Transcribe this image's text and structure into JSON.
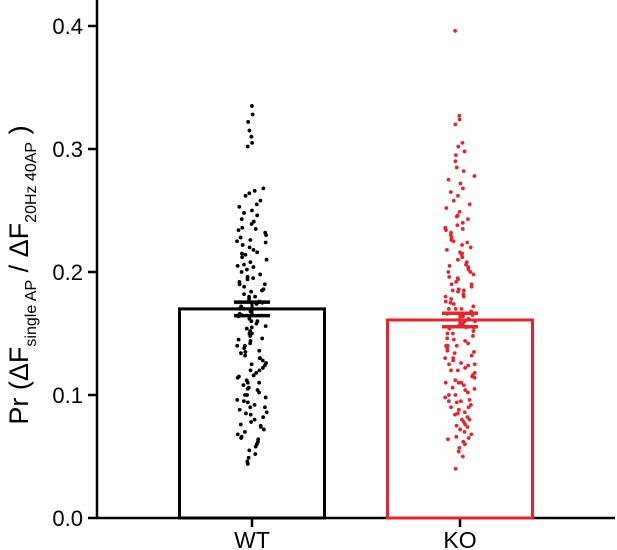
{
  "chart_data": {
    "type": "bar",
    "categories": [
      "WT",
      "KO"
    ],
    "colors": [
      "#000000",
      "#e8242b"
    ],
    "ylim": [
      0,
      0.42
    ],
    "yticks": [
      "0.0",
      "0.1",
      "0.2",
      "0.3",
      "0.4"
    ],
    "ylabel": {
      "prefix": "Pr (ΔF",
      "sub1": "single AP",
      "mid": " / ΔF",
      "sub2": "20Hz 40AP",
      "suffix": " )"
    },
    "series": [
      {
        "values": [
          0.17,
          0.161
        ],
        "sem": [
          0.0055,
          0.0055
        ],
        "points": [
          [
            0.335,
            0.328,
            0.322,
            0.315,
            0.31,
            0.305,
            0.302,
            0.268,
            0.266,
            0.264,
            0.262,
            0.258,
            0.255,
            0.253,
            0.25,
            0.248,
            0.246,
            0.243,
            0.241,
            0.239,
            0.236,
            0.234,
            0.232,
            0.23,
            0.228,
            0.226,
            0.224,
            0.222,
            0.22,
            0.218,
            0.216,
            0.214,
            0.212,
            0.21,
            0.208,
            0.206,
            0.204,
            0.202,
            0.2,
            0.198,
            0.196,
            0.194,
            0.192,
            0.19,
            0.188,
            0.186,
            0.184,
            0.182,
            0.18,
            0.178,
            0.176,
            0.174,
            0.172,
            0.17,
            0.168,
            0.166,
            0.164,
            0.162,
            0.16,
            0.158,
            0.156,
            0.154,
            0.152,
            0.15,
            0.148,
            0.146,
            0.144,
            0.142,
            0.14,
            0.138,
            0.136,
            0.134,
            0.132,
            0.13,
            0.128,
            0.126,
            0.124,
            0.122,
            0.12,
            0.118,
            0.116,
            0.114,
            0.112,
            0.11,
            0.108,
            0.106,
            0.104,
            0.102,
            0.1,
            0.098,
            0.096,
            0.094,
            0.092,
            0.09,
            0.088,
            0.086,
            0.084,
            0.082,
            0.08,
            0.078,
            0.076,
            0.074,
            0.072,
            0.07,
            0.068,
            0.066,
            0.064,
            0.062,
            0.06,
            0.058,
            0.055,
            0.052,
            0.049,
            0.046,
            0.044,
            0.205,
            0.195,
            0.185,
            0.175,
            0.165,
            0.155,
            0.145,
            0.135,
            0.125,
            0.115,
            0.105,
            0.095,
            0.085,
            0.075,
            0.065,
            0.215,
            0.225,
            0.235,
            0.19,
            0.18,
            0.17,
            0.16,
            0.15,
            0.14,
            0.13,
            0.12,
            0.11,
            0.1,
            0.09
          ],
          [
            0.396,
            0.327,
            0.324,
            0.32,
            0.305,
            0.302,
            0.298,
            0.295,
            0.29,
            0.285,
            0.282,
            0.278,
            0.275,
            0.272,
            0.268,
            0.265,
            0.262,
            0.258,
            0.255,
            0.252,
            0.249,
            0.246,
            0.243,
            0.24,
            0.238,
            0.236,
            0.234,
            0.232,
            0.23,
            0.228,
            0.226,
            0.224,
            0.222,
            0.22,
            0.218,
            0.216,
            0.214,
            0.212,
            0.21,
            0.208,
            0.206,
            0.204,
            0.202,
            0.2,
            0.198,
            0.196,
            0.194,
            0.192,
            0.19,
            0.188,
            0.186,
            0.184,
            0.182,
            0.18,
            0.178,
            0.176,
            0.174,
            0.172,
            0.17,
            0.168,
            0.166,
            0.164,
            0.162,
            0.16,
            0.158,
            0.156,
            0.154,
            0.152,
            0.15,
            0.148,
            0.146,
            0.144,
            0.142,
            0.14,
            0.138,
            0.136,
            0.134,
            0.132,
            0.13,
            0.128,
            0.126,
            0.124,
            0.122,
            0.12,
            0.118,
            0.116,
            0.114,
            0.112,
            0.11,
            0.108,
            0.106,
            0.104,
            0.102,
            0.1,
            0.098,
            0.096,
            0.094,
            0.092,
            0.09,
            0.088,
            0.086,
            0.084,
            0.082,
            0.08,
            0.078,
            0.076,
            0.074,
            0.072,
            0.07,
            0.068,
            0.066,
            0.064,
            0.062,
            0.06,
            0.057,
            0.054,
            0.05,
            0.04,
            0.215,
            0.205,
            0.195,
            0.185,
            0.175,
            0.165,
            0.155,
            0.145,
            0.135,
            0.125,
            0.115,
            0.105,
            0.095,
            0.085,
            0.075,
            0.065,
            0.225,
            0.235,
            0.245,
            0.19,
            0.18,
            0.17,
            0.16,
            0.15,
            0.14,
            0.13,
            0.12,
            0.11,
            0.1,
            0.09,
            0.08,
            0.2,
            0.185,
            0.17,
            0.155,
            0.14,
            0.125,
            0.11,
            0.095
          ]
        ]
      }
    ]
  }
}
